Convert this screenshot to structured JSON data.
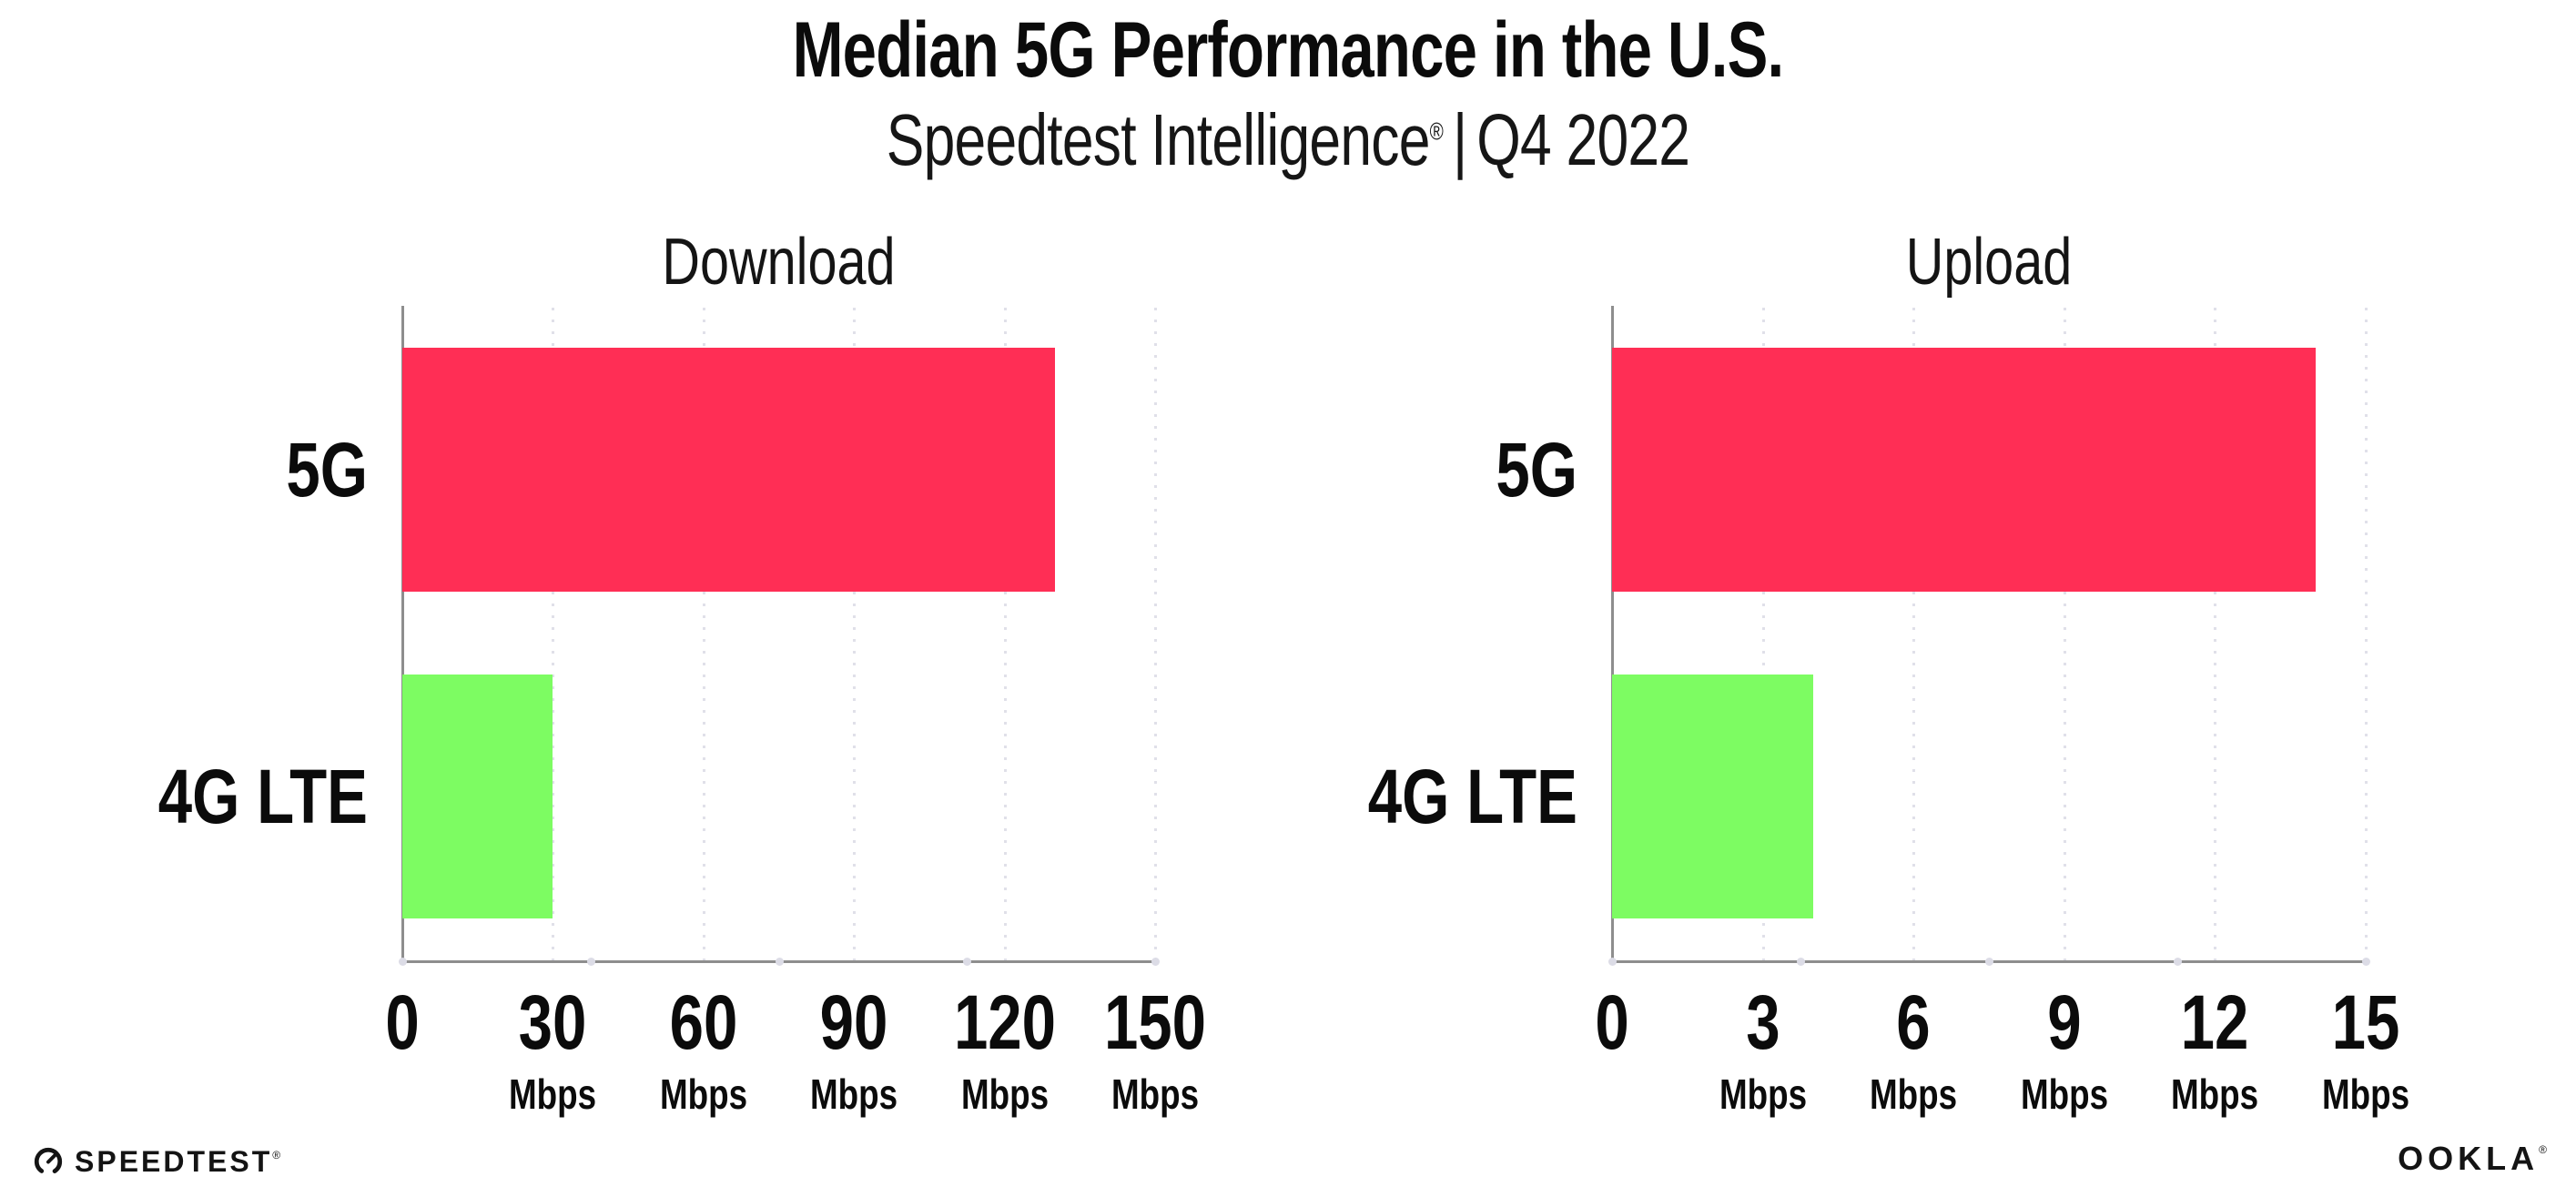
{
  "header": {
    "title": "Median 5G Performance in the U.S.",
    "subtitle_brand": "Speedtest Intelligence",
    "subtitle_reg": "®",
    "subtitle_sep": "|",
    "subtitle_period": "Q4 2022"
  },
  "colors": {
    "bar_5g_red": "#FF2E55",
    "bar_4g_green": "#7DFC62",
    "axis_gray": "#8E8E8E",
    "gridline_gray": "#E0E0E9",
    "text_black": "#0B0B0B"
  },
  "chart_data": [
    {
      "type": "bar",
      "orientation": "horizontal",
      "title": "Download",
      "categories": [
        "5G",
        "4G LTE"
      ],
      "values": [
        130,
        30
      ],
      "unit": "Mbps",
      "xlim": [
        0,
        150
      ],
      "xticks": [
        0,
        30,
        60,
        90,
        120,
        150
      ],
      "bar_colors": [
        "#FF2E55",
        "#7DFC62"
      ],
      "grid": "vertical-dotted",
      "legend": "none"
    },
    {
      "type": "bar",
      "orientation": "horizontal",
      "title": "Upload",
      "categories": [
        "5G",
        "4G LTE"
      ],
      "values": [
        14,
        4
      ],
      "unit": "Mbps",
      "xlim": [
        0,
        15
      ],
      "xticks": [
        0,
        3,
        6,
        9,
        12,
        15
      ],
      "bar_colors": [
        "#FF2E55",
        "#7DFC62"
      ],
      "grid": "vertical-dotted",
      "legend": "none"
    }
  ],
  "footer": {
    "speedtest_label": "SPEEDTEST",
    "speedtest_reg": "®",
    "ookla_label": "OOKLA",
    "ookla_reg": "®"
  }
}
